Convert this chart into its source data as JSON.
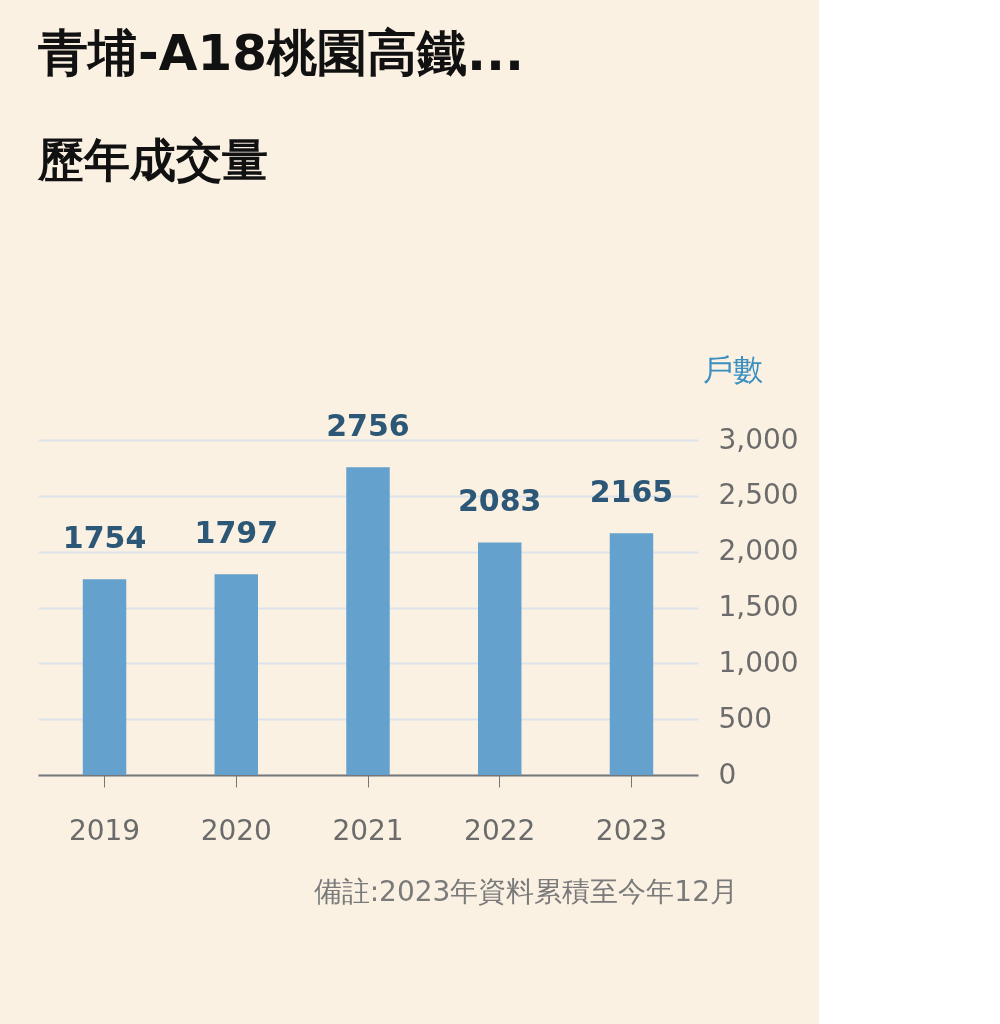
{
  "chart_data": {
    "type": "bar",
    "title": "青埔-A18桃園高鐵...",
    "subtitle": "歷年成交量",
    "ylabel": "戶數",
    "categories": [
      "2019",
      "2020",
      "2021",
      "2022",
      "2023"
    ],
    "values": [
      1754,
      1797,
      2756,
      2083,
      2165
    ],
    "color": "#64a1cd",
    "ylim": [
      0,
      3000
    ],
    "yticks": [
      0,
      500,
      {
        "value": 1000,
        "label": "1,000"
      },
      {
        "value": 1500,
        "label": "1,500"
      },
      {
        "value": 2000,
        "label": "2,000"
      },
      {
        "value": 2500,
        "label": "2,500"
      },
      {
        "value": 3000,
        "label": "3,000"
      }
    ],
    "grid": "y",
    "data_labels": true,
    "annotations": [
      "備註:2023年資料累積至今年12月"
    ]
  }
}
